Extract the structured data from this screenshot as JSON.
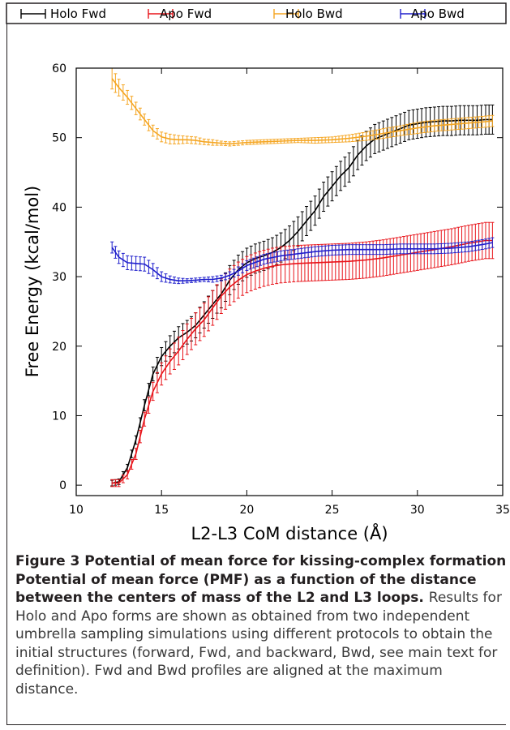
{
  "chart_data": {
    "type": "line",
    "xlabel": "L2-L3 CoM distance (Å)",
    "ylabel": "Free Energy (kcal/mol)",
    "xlim": [
      10,
      35
    ],
    "ylim": [
      -1.5,
      60
    ],
    "xticks": [
      "10",
      "15",
      "20",
      "25",
      "30",
      "35"
    ],
    "yticks": [
      "0",
      "10",
      "20",
      "30",
      "40",
      "50",
      "60"
    ],
    "legend_position": "top",
    "grid": false,
    "error_bars": true,
    "series": [
      {
        "name": "Holo Fwd",
        "color": "#000000",
        "x": [
          12.1,
          12.5,
          13.0,
          13.5,
          14.0,
          14.5,
          15.0,
          15.5,
          16.0,
          16.5,
          17.0,
          17.5,
          18.0,
          18.5,
          19.0,
          19.5,
          20.0,
          20.5,
          21.0,
          21.5,
          22.0,
          22.5,
          23.0,
          23.5,
          24.0,
          24.5,
          25.0,
          25.5,
          26.0,
          26.5,
          27.0,
          27.5,
          28.0,
          28.5,
          29.0,
          29.5,
          30.0,
          30.5,
          31.0,
          31.5,
          32.0,
          32.5,
          33.0,
          33.5,
          34.0,
          34.4
        ],
        "y": [
          0.3,
          0.5,
          2.5,
          6.5,
          11.5,
          16.0,
          18.5,
          20.0,
          21.2,
          22.0,
          23.0,
          24.5,
          26.0,
          27.5,
          29.5,
          31.0,
          32.0,
          32.6,
          33.0,
          33.5,
          34.2,
          35.2,
          36.5,
          38.0,
          39.5,
          41.5,
          43.0,
          44.5,
          45.7,
          47.5,
          48.8,
          49.8,
          50.3,
          50.8,
          51.3,
          51.8,
          52.0,
          52.2,
          52.3,
          52.4,
          52.4,
          52.5,
          52.5,
          52.5,
          52.6,
          52.6
        ],
        "err": [
          0.4,
          0.4,
          0.5,
          0.6,
          0.8,
          1.0,
          1.3,
          1.5,
          1.6,
          1.7,
          1.8,
          1.9,
          2.0,
          2.0,
          2.1,
          2.1,
          2.1,
          2.1,
          2.1,
          2.1,
          2.1,
          2.1,
          2.1,
          2.1,
          2.1,
          2.1,
          2.1,
          2.1,
          2.1,
          2.1,
          2.1,
          2.1,
          2.1,
          2.1,
          2.1,
          2.1,
          2.1,
          2.1,
          2.1,
          2.1,
          2.1,
          2.1,
          2.1,
          2.1,
          2.1,
          2.1
        ]
      },
      {
        "name": "Apo Fwd",
        "color": "#e8141a",
        "x": [
          12.1,
          12.5,
          13.0,
          13.5,
          14.0,
          14.5,
          15.0,
          15.5,
          16.0,
          16.5,
          17.0,
          17.5,
          18.0,
          18.5,
          19.0,
          19.5,
          20.0,
          20.5,
          21.0,
          21.5,
          22.0,
          22.5,
          23.0,
          24.0,
          25.0,
          26.0,
          27.0,
          28.0,
          29.0,
          30.0,
          31.0,
          32.0,
          33.0,
          34.0,
          34.4
        ],
        "y": [
          0.3,
          0.3,
          1.5,
          4.5,
          9.5,
          13.5,
          16.0,
          17.8,
          19.3,
          21.0,
          22.5,
          23.8,
          25.5,
          27.2,
          28.5,
          29.5,
          30.3,
          30.8,
          31.2,
          31.5,
          31.7,
          31.8,
          31.9,
          32.0,
          32.1,
          32.2,
          32.4,
          32.7,
          33.1,
          33.5,
          33.9,
          34.3,
          34.8,
          35.2,
          35.2
        ],
        "err": [
          0.5,
          0.5,
          0.6,
          0.8,
          1.0,
          1.3,
          1.6,
          1.8,
          2.0,
          2.2,
          2.3,
          2.4,
          2.5,
          2.5,
          2.6,
          2.6,
          2.6,
          2.6,
          2.6,
          2.6,
          2.6,
          2.6,
          2.6,
          2.6,
          2.6,
          2.6,
          2.6,
          2.6,
          2.6,
          2.6,
          2.6,
          2.6,
          2.6,
          2.6,
          2.6
        ]
      },
      {
        "name": "Holo Bwd",
        "color": "#f5a623",
        "x": [
          12.1,
          12.5,
          13.0,
          13.5,
          14.0,
          14.5,
          15.0,
          15.5,
          16.0,
          16.5,
          17.0,
          17.5,
          18.0,
          18.5,
          19.0,
          19.5,
          20.0,
          21.0,
          22.0,
          23.0,
          24.0,
          25.0,
          26.0,
          27.0,
          28.0,
          29.0,
          30.0,
          31.0,
          32.0,
          33.0,
          34.0,
          34.4
        ],
        "y": [
          58.5,
          57.2,
          55.8,
          54.2,
          52.6,
          51.0,
          50.1,
          49.8,
          49.7,
          49.7,
          49.6,
          49.4,
          49.3,
          49.2,
          49.1,
          49.2,
          49.3,
          49.4,
          49.5,
          49.6,
          49.6,
          49.7,
          49.9,
          50.2,
          50.6,
          51.0,
          51.4,
          51.7,
          51.9,
          52.1,
          52.3,
          52.4
        ],
        "err": [
          1.5,
          1.2,
          1.0,
          0.9,
          0.8,
          0.8,
          0.7,
          0.7,
          0.6,
          0.5,
          0.5,
          0.4,
          0.4,
          0.3,
          0.3,
          0.3,
          0.3,
          0.3,
          0.3,
          0.3,
          0.4,
          0.4,
          0.5,
          0.6,
          0.7,
          0.7,
          0.8,
          0.8,
          0.8,
          0.8,
          0.8,
          0.8
        ]
      },
      {
        "name": "Apo Bwd",
        "color": "#1f1fcc",
        "x": [
          12.1,
          12.5,
          13.0,
          13.5,
          14.0,
          14.5,
          15.0,
          15.5,
          16.0,
          16.5,
          17.0,
          17.5,
          18.0,
          18.5,
          19.0,
          19.5,
          20.0,
          21.0,
          22.0,
          23.0,
          24.0,
          25.0,
          26.0,
          27.0,
          28.0,
          29.0,
          30.0,
          31.0,
          32.0,
          33.0,
          34.0,
          34.4
        ],
        "y": [
          34.2,
          32.8,
          32.0,
          31.9,
          31.8,
          31.0,
          30.0,
          29.6,
          29.4,
          29.4,
          29.5,
          29.6,
          29.6,
          29.8,
          30.2,
          30.8,
          31.6,
          32.5,
          33.0,
          33.3,
          33.6,
          33.8,
          33.9,
          33.9,
          33.9,
          34.0,
          34.0,
          34.0,
          34.1,
          34.3,
          34.7,
          34.9
        ],
        "err": [
          0.8,
          0.9,
          1.0,
          1.0,
          1.0,
          0.9,
          0.7,
          0.5,
          0.4,
          0.3,
          0.3,
          0.3,
          0.4,
          0.4,
          0.5,
          0.6,
          0.7,
          0.7,
          0.7,
          0.7,
          0.7,
          0.7,
          0.7,
          0.7,
          0.7,
          0.7,
          0.7,
          0.7,
          0.7,
          0.7,
          0.7,
          0.7
        ]
      }
    ]
  },
  "caption": {
    "bold_title": "Figure 3 Potential of mean force for kissing-complex formation Potential of mean force (PMF) as a function of the distance between the centers of mass of the L2 and L3 loops",
    "after_bold": ". ",
    "body": "Results for Holo and Apo forms are shown as obtained from two independent umbrella sampling simulations using different protocols to obtain the initial structures (forward, Fwd, and backward, Bwd, see main text for definition). Fwd and Bwd profiles are aligned at the maximum distance."
  }
}
